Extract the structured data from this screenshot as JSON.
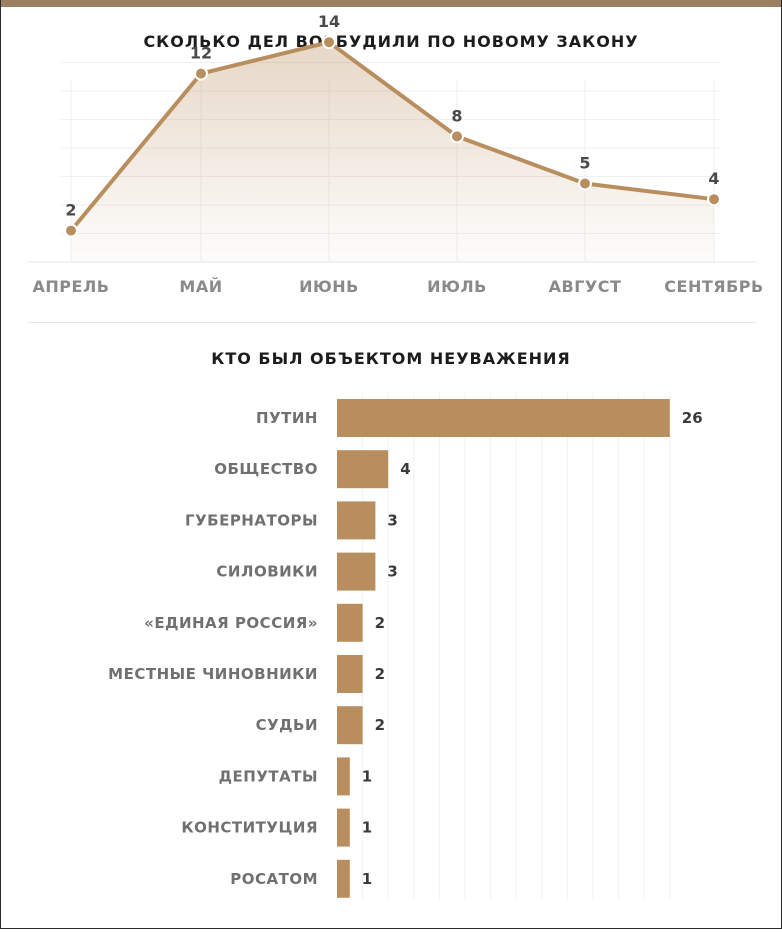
{
  "accent_color": "#b98e5e",
  "top_bar_color": "#9b7f61",
  "chart_data": [
    {
      "type": "line",
      "title": "СКОЛЬКО ДЕЛ ВОЗБУДИЛИ ПО НОВОМУ ЗАКОНУ",
      "categories": [
        "АПРЕЛЬ",
        "МАЙ",
        "ИЮНЬ",
        "ИЮЛЬ",
        "АВГУСТ",
        "СЕНТЯБРЬ"
      ],
      "values": [
        2,
        12,
        14,
        8,
        5,
        4
      ],
      "area_fill": true,
      "grid": true
    },
    {
      "type": "bar",
      "orientation": "horizontal",
      "title": "КТО БЫЛ ОБЪЕКТОМ НЕУВАЖЕНИЯ",
      "categories": [
        "ПУТИН",
        "ОБЩЕСТВО",
        "ГУБЕРНАТОРЫ",
        "СИЛОВИКИ",
        "«ЕДИНАЯ РОССИЯ»",
        "МЕСТНЫЕ ЧИНОВНИКИ",
        "СУДЬИ",
        "ДЕПУТАТЫ",
        "КОНСТИТУЦИЯ",
        "РОСАТОМ"
      ],
      "values": [
        26,
        4,
        3,
        3,
        2,
        2,
        2,
        1,
        1,
        1
      ],
      "grid": true
    }
  ]
}
